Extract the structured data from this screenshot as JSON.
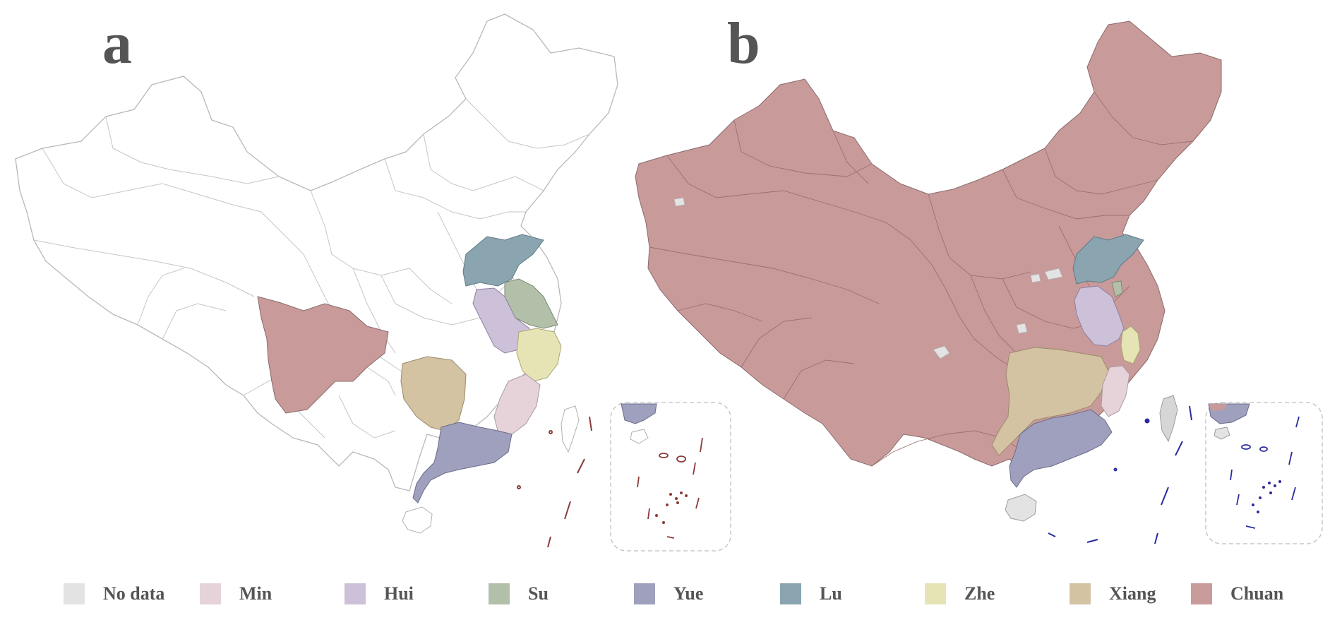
{
  "panels": [
    {
      "letter": "a"
    },
    {
      "letter": "b"
    }
  ],
  "legend": [
    {
      "label": "No data",
      "color": "#e3e3e3"
    },
    {
      "label": "Min",
      "color": "#e6d3da"
    },
    {
      "label": "Hui",
      "color": "#cdc1d9"
    },
    {
      "label": "Su",
      "color": "#b3c0a9"
    },
    {
      "label": "Yue",
      "color": "#9ea0bd"
    },
    {
      "label": "Lu",
      "color": "#8aa4b0"
    },
    {
      "label": "Zhe",
      "color": "#e6e4b5"
    },
    {
      "label": "Xiang",
      "color": "#d4c3a3"
    },
    {
      "label": "Chuan",
      "color": "#c99a9a"
    }
  ],
  "colors": {
    "outline": "#b8b8b8",
    "border_dark": "#8a6a6a",
    "letter": "#555555",
    "inset_frame": "#c8c8c8",
    "island_a": "#8b3a3a",
    "island_b": "#2a2aa0"
  }
}
